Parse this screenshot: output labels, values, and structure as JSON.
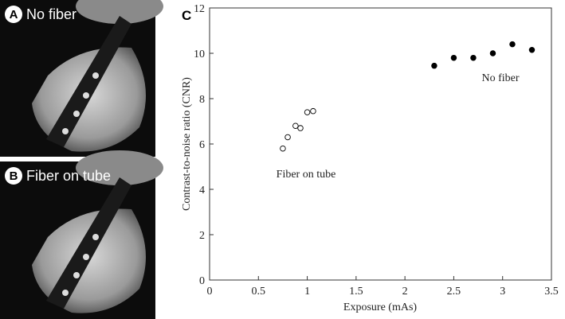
{
  "panels": [
    {
      "letter": "A",
      "label": "No fiber"
    },
    {
      "letter": "B",
      "label": "Fiber on tube"
    }
  ],
  "chart_data": {
    "type": "scatter",
    "panel_letter": "C",
    "x_label": "Exposure (mAs)",
    "y_label": "Contrast-to-noise ratio (CNR)",
    "xlim": [
      0,
      3.5
    ],
    "xticks": [
      0,
      0.5,
      1,
      1.5,
      2,
      2.5,
      3,
      3.5
    ],
    "ylim": [
      0,
      12
    ],
    "yticks": [
      0,
      2,
      4,
      6,
      8,
      10,
      12
    ],
    "series": [
      {
        "name": "No fiber",
        "color": "#000000",
        "marker": "filled",
        "x": [
          2.3,
          2.5,
          2.7,
          2.9,
          3.1,
          3.3
        ],
        "values": [
          9.45,
          9.8,
          9.8,
          10.0,
          10.4,
          10.15
        ]
      },
      {
        "name": "Fiber on tube",
        "color": "#000000",
        "marker": "open",
        "x": [
          0.75,
          0.8,
          0.88,
          0.93,
          1.0,
          1.06
        ],
        "values": [
          5.8,
          6.3,
          6.8,
          6.7,
          7.4,
          7.45
        ]
      }
    ]
  }
}
